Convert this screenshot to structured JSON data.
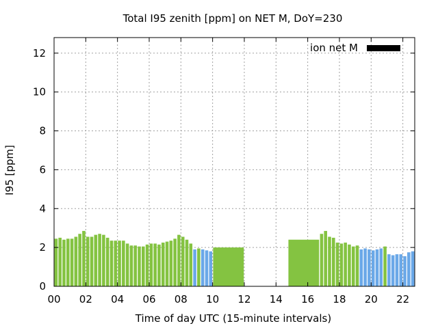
{
  "chart_data": {
    "type": "bar",
    "title": "Total I95 zenith [ppm] on NET M, DoY=230",
    "xlabel": "Time of day UTC (15-minute intervals)",
    "ylabel": "I95 [ppm]",
    "xlim": [
      0,
      22.75
    ],
    "ylim": [
      0,
      12.8
    ],
    "grid": true,
    "legend": {
      "position": "top-right",
      "entries": [
        {
          "name": "ion net M",
          "color": "#000000"
        }
      ]
    },
    "x_ticks": [
      {
        "value": 0,
        "label": "00"
      },
      {
        "value": 2,
        "label": "02"
      },
      {
        "value": 4,
        "label": "04"
      },
      {
        "value": 6,
        "label": "06"
      },
      {
        "value": 8,
        "label": "08"
      },
      {
        "value": 10,
        "label": "10"
      },
      {
        "value": 12,
        "label": "12"
      },
      {
        "value": 14,
        "label": "14"
      },
      {
        "value": 16,
        "label": "16"
      },
      {
        "value": 18,
        "label": "18"
      },
      {
        "value": 20,
        "label": "20"
      },
      {
        "value": 22,
        "label": "22"
      }
    ],
    "y_ticks": [
      {
        "value": 0,
        "label": "0"
      },
      {
        "value": 2,
        "label": "2"
      },
      {
        "value": 4,
        "label": "4"
      },
      {
        "value": 6,
        "label": "6"
      },
      {
        "value": 8,
        "label": "8"
      },
      {
        "value": 10,
        "label": "10"
      },
      {
        "value": 12,
        "label": "12"
      }
    ],
    "colors": {
      "green": "#84c341",
      "blue": "#6aa8e8"
    },
    "bars": [
      {
        "x": 0.0,
        "w": 0.25,
        "y": 2.45,
        "c": "green"
      },
      {
        "x": 0.25,
        "w": 0.25,
        "y": 2.5,
        "c": "green"
      },
      {
        "x": 0.5,
        "w": 0.25,
        "y": 2.4,
        "c": "green"
      },
      {
        "x": 0.75,
        "w": 0.25,
        "y": 2.45,
        "c": "green"
      },
      {
        "x": 1.0,
        "w": 0.25,
        "y": 2.45,
        "c": "green"
      },
      {
        "x": 1.25,
        "w": 0.25,
        "y": 2.55,
        "c": "green"
      },
      {
        "x": 1.5,
        "w": 0.25,
        "y": 2.7,
        "c": "green"
      },
      {
        "x": 1.75,
        "w": 0.25,
        "y": 2.85,
        "c": "green"
      },
      {
        "x": 2.0,
        "w": 0.25,
        "y": 2.55,
        "c": "green"
      },
      {
        "x": 2.25,
        "w": 0.25,
        "y": 2.55,
        "c": "green"
      },
      {
        "x": 2.5,
        "w": 0.25,
        "y": 2.65,
        "c": "green"
      },
      {
        "x": 2.75,
        "w": 0.25,
        "y": 2.7,
        "c": "green"
      },
      {
        "x": 3.0,
        "w": 0.25,
        "y": 2.65,
        "c": "green"
      },
      {
        "x": 3.25,
        "w": 0.25,
        "y": 2.5,
        "c": "green"
      },
      {
        "x": 3.5,
        "w": 0.25,
        "y": 2.35,
        "c": "green"
      },
      {
        "x": 3.75,
        "w": 0.25,
        "y": 2.35,
        "c": "green"
      },
      {
        "x": 4.0,
        "w": 0.25,
        "y": 2.35,
        "c": "green"
      },
      {
        "x": 4.25,
        "w": 0.25,
        "y": 2.35,
        "c": "green"
      },
      {
        "x": 4.5,
        "w": 0.25,
        "y": 2.2,
        "c": "green"
      },
      {
        "x": 4.75,
        "w": 0.25,
        "y": 2.1,
        "c": "green"
      },
      {
        "x": 5.0,
        "w": 0.25,
        "y": 2.1,
        "c": "green"
      },
      {
        "x": 5.25,
        "w": 0.25,
        "y": 2.05,
        "c": "green"
      },
      {
        "x": 5.5,
        "w": 0.25,
        "y": 2.05,
        "c": "green"
      },
      {
        "x": 5.75,
        "w": 0.25,
        "y": 2.15,
        "c": "green"
      },
      {
        "x": 6.0,
        "w": 0.25,
        "y": 2.2,
        "c": "green"
      },
      {
        "x": 6.25,
        "w": 0.25,
        "y": 2.2,
        "c": "green"
      },
      {
        "x": 6.5,
        "w": 0.25,
        "y": 2.15,
        "c": "green"
      },
      {
        "x": 6.75,
        "w": 0.25,
        "y": 2.25,
        "c": "green"
      },
      {
        "x": 7.0,
        "w": 0.25,
        "y": 2.3,
        "c": "green"
      },
      {
        "x": 7.25,
        "w": 0.25,
        "y": 2.35,
        "c": "green"
      },
      {
        "x": 7.5,
        "w": 0.25,
        "y": 2.45,
        "c": "green"
      },
      {
        "x": 7.75,
        "w": 0.25,
        "y": 2.65,
        "c": "green"
      },
      {
        "x": 8.0,
        "w": 0.25,
        "y": 2.55,
        "c": "green"
      },
      {
        "x": 8.25,
        "w": 0.25,
        "y": 2.4,
        "c": "green"
      },
      {
        "x": 8.5,
        "w": 0.25,
        "y": 2.2,
        "c": "green"
      },
      {
        "x": 8.75,
        "w": 0.25,
        "y": 1.9,
        "c": "blue"
      },
      {
        "x": 9.0,
        "w": 0.25,
        "y": 1.95,
        "c": "green"
      },
      {
        "x": 9.25,
        "w": 0.25,
        "y": 1.9,
        "c": "blue"
      },
      {
        "x": 9.5,
        "w": 0.25,
        "y": 1.85,
        "c": "blue"
      },
      {
        "x": 9.75,
        "w": 0.25,
        "y": 1.8,
        "c": "blue"
      },
      {
        "x": 10.0,
        "w": 2.0,
        "y": 2.0,
        "c": "green"
      },
      {
        "x": 14.75,
        "w": 2.0,
        "y": 2.4,
        "c": "green"
      },
      {
        "x": 16.75,
        "w": 0.25,
        "y": 2.7,
        "c": "green"
      },
      {
        "x": 17.0,
        "w": 0.25,
        "y": 2.85,
        "c": "green"
      },
      {
        "x": 17.25,
        "w": 0.25,
        "y": 2.55,
        "c": "green"
      },
      {
        "x": 17.5,
        "w": 0.25,
        "y": 2.5,
        "c": "green"
      },
      {
        "x": 17.75,
        "w": 0.25,
        "y": 2.25,
        "c": "green"
      },
      {
        "x": 18.0,
        "w": 0.25,
        "y": 2.2,
        "c": "green"
      },
      {
        "x": 18.25,
        "w": 0.25,
        "y": 2.25,
        "c": "green"
      },
      {
        "x": 18.5,
        "w": 0.25,
        "y": 2.15,
        "c": "green"
      },
      {
        "x": 18.75,
        "w": 0.25,
        "y": 2.05,
        "c": "green"
      },
      {
        "x": 19.0,
        "w": 0.25,
        "y": 2.1,
        "c": "green"
      },
      {
        "x": 19.25,
        "w": 0.25,
        "y": 1.9,
        "c": "blue"
      },
      {
        "x": 19.5,
        "w": 0.25,
        "y": 1.95,
        "c": "blue"
      },
      {
        "x": 19.75,
        "w": 0.25,
        "y": 1.9,
        "c": "blue"
      },
      {
        "x": 20.0,
        "w": 0.25,
        "y": 1.85,
        "c": "blue"
      },
      {
        "x": 20.25,
        "w": 0.25,
        "y": 1.9,
        "c": "blue"
      },
      {
        "x": 20.5,
        "w": 0.25,
        "y": 1.95,
        "c": "blue"
      },
      {
        "x": 20.75,
        "w": 0.25,
        "y": 2.05,
        "c": "green"
      },
      {
        "x": 21.0,
        "w": 0.25,
        "y": 1.65,
        "c": "blue"
      },
      {
        "x": 21.25,
        "w": 0.25,
        "y": 1.6,
        "c": "blue"
      },
      {
        "x": 21.5,
        "w": 0.25,
        "y": 1.65,
        "c": "blue"
      },
      {
        "x": 21.75,
        "w": 0.25,
        "y": 1.65,
        "c": "blue"
      },
      {
        "x": 22.0,
        "w": 0.25,
        "y": 1.55,
        "c": "blue"
      },
      {
        "x": 22.25,
        "w": 0.25,
        "y": 1.75,
        "c": "blue"
      },
      {
        "x": 22.5,
        "w": 0.25,
        "y": 1.8,
        "c": "blue"
      }
    ]
  }
}
